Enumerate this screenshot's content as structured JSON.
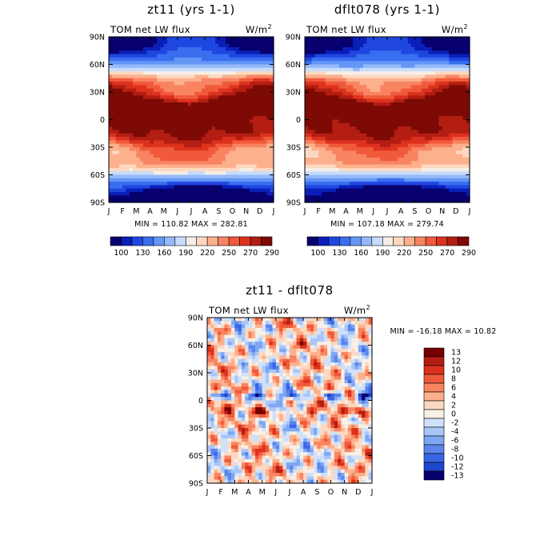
{
  "chart_data": [
    {
      "type": "heatmap",
      "title": "zt11 (yrs 1-1)",
      "subtitle_left": "TOM net LW flux",
      "units": "W/m",
      "units_sup": "2",
      "x_tick_labels": [
        "J",
        "F",
        "M",
        "A",
        "M",
        "J",
        "J",
        "A",
        "S",
        "O",
        "N",
        "D",
        "J"
      ],
      "y_tick_labels": [
        "90N",
        "60N",
        "30N",
        "0",
        "30S",
        "60S",
        "90S"
      ],
      "ylim": [
        -90,
        90
      ],
      "stats_text": "MIN = 110.82 MAX = 282.81",
      "min": 110.82,
      "max": 282.81,
      "colorbar": {
        "orientation": "horizontal",
        "levels": [
          100,
          115,
          130,
          145,
          160,
          175,
          190,
          205,
          220,
          235,
          250,
          265,
          270,
          280,
          290
        ],
        "labels": [
          "100",
          "130",
          "160",
          "190",
          "220",
          "250",
          "270",
          "290"
        ]
      }
    },
    {
      "type": "heatmap",
      "title": "dflt078 (yrs 1-1)",
      "subtitle_left": "TOM net LW flux",
      "units": "W/m",
      "units_sup": "2",
      "x_tick_labels": [
        "J",
        "F",
        "M",
        "A",
        "M",
        "J",
        "J",
        "A",
        "S",
        "O",
        "N",
        "D",
        "J"
      ],
      "y_tick_labels": [
        "90N",
        "60N",
        "30N",
        "0",
        "30S",
        "60S",
        "90S"
      ],
      "ylim": [
        -90,
        90
      ],
      "stats_text": "MIN = 107.18 MAX = 279.74",
      "min": 107.18,
      "max": 279.74,
      "colorbar": {
        "orientation": "horizontal",
        "levels": [
          100,
          115,
          130,
          145,
          160,
          175,
          190,
          205,
          220,
          235,
          250,
          265,
          270,
          280,
          290
        ],
        "labels": [
          "100",
          "130",
          "160",
          "190",
          "220",
          "250",
          "270",
          "290"
        ]
      }
    },
    {
      "type": "heatmap",
      "title": "zt11 - dflt078",
      "subtitle_left": "TOM net LW flux",
      "units": "W/m",
      "units_sup": "2",
      "x_tick_labels": [
        "J",
        "F",
        "M",
        "A",
        "M",
        "J",
        "J",
        "A",
        "S",
        "O",
        "N",
        "D",
        "J"
      ],
      "y_tick_labels": [
        "90N",
        "60N",
        "30N",
        "0",
        "30S",
        "60S",
        "90S"
      ],
      "ylim": [
        -90,
        90
      ],
      "stats_text": "MIN = -16.18 MAX =  10.82",
      "min": -16.18,
      "max": 10.82,
      "colorbar": {
        "orientation": "vertical",
        "levels": [
          13,
          12,
          10,
          8,
          6,
          4,
          2,
          0,
          -2,
          -4,
          -6,
          -8,
          -10,
          -12,
          -13
        ],
        "labels": [
          "13",
          "12",
          "10",
          "8",
          "6",
          "4",
          "2",
          "0",
          "-2",
          "-4",
          "-6",
          "-8",
          "-10",
          "-12",
          "-13"
        ]
      }
    }
  ],
  "palette": {
    "abs": [
      "#08006e",
      "#0a1fb8",
      "#1f47e0",
      "#3a6ef0",
      "#6496f5",
      "#96b9fa",
      "#c6dcfc",
      "#f6eee6",
      "#fdd8c0",
      "#fcb08c",
      "#f88462",
      "#f05a3a",
      "#dc321e",
      "#b41e12",
      "#7d0a05"
    ],
    "diff": [
      "#780000",
      "#b41e12",
      "#dc321e",
      "#f05a3a",
      "#f88462",
      "#fcb08c",
      "#fdd8c0",
      "#f8f0e6",
      "#cfe1fb",
      "#a9c6f8",
      "#7ea6f2",
      "#5a86ec",
      "#3966e6",
      "#1f45cc",
      "#08006e"
    ]
  }
}
